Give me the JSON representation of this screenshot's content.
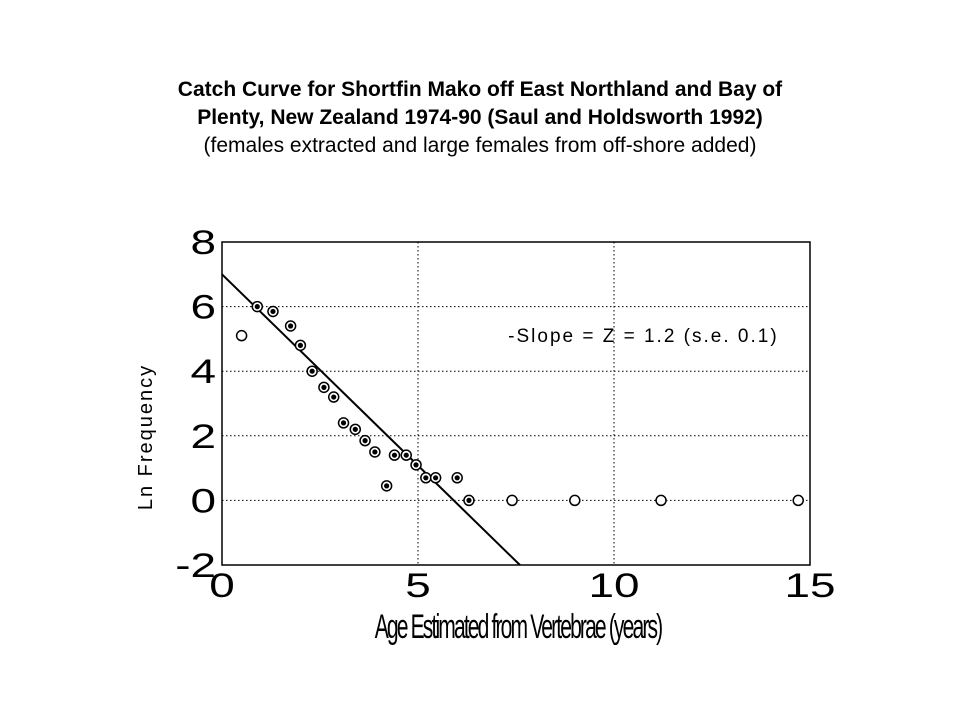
{
  "title_line1": "Catch Curve for Shortfin Mako off East Northland and Bay of",
  "title_line2": "Plenty, New Zealand 1974-90 (Saul and Holdsworth 1992)",
  "subtitle": "(females extracted and large females from off-shore added)",
  "chart_data": {
    "type": "scatter",
    "title": "Catch Curve for Shortfin Mako off East Northland and Bay of Plenty, New Zealand 1974-90 (Saul and Holdsworth 1992)",
    "subtitle": "(females extracted and large females from off-shore added)",
    "xlabel": "Age Estimated from Vertebrae (years)",
    "ylabel": "Ln Frequency",
    "xlim": [
      0,
      15
    ],
    "ylim": [
      -2,
      8
    ],
    "x_ticks": [
      "0",
      "5",
      "10",
      "15"
    ],
    "y_ticks": [
      "-2",
      "0",
      "2",
      "4",
      "6",
      "8"
    ],
    "grid": true,
    "annotation": "-Slope = Z = 1.2 (s.e. 0.1)",
    "series": [
      {
        "marker": "filled-circle",
        "points": [
          {
            "x": 0.9,
            "y": 6.0
          },
          {
            "x": 1.3,
            "y": 5.85
          },
          {
            "x": 1.75,
            "y": 5.4
          },
          {
            "x": 2.0,
            "y": 4.8
          },
          {
            "x": 2.3,
            "y": 4.0
          },
          {
            "x": 2.6,
            "y": 3.5
          },
          {
            "x": 2.85,
            "y": 3.2
          },
          {
            "x": 3.1,
            "y": 2.4
          },
          {
            "x": 3.4,
            "y": 2.2
          },
          {
            "x": 3.65,
            "y": 1.85
          },
          {
            "x": 3.9,
            "y": 1.5
          },
          {
            "x": 4.2,
            "y": 0.45
          },
          {
            "x": 4.4,
            "y": 1.4
          },
          {
            "x": 4.7,
            "y": 1.4
          },
          {
            "x": 4.95,
            "y": 1.1
          },
          {
            "x": 5.2,
            "y": 0.7
          },
          {
            "x": 5.45,
            "y": 0.7
          },
          {
            "x": 6.0,
            "y": 0.7
          },
          {
            "x": 6.3,
            "y": 0.0
          }
        ]
      },
      {
        "marker": "open-circle",
        "points": [
          {
            "x": 0.5,
            "y": 5.1
          },
          {
            "x": 7.4,
            "y": 0.0
          },
          {
            "x": 9.0,
            "y": 0.0
          },
          {
            "x": 11.2,
            "y": 0.0
          },
          {
            "x": 14.7,
            "y": 0.0
          }
        ]
      }
    ],
    "fit_line": {
      "points": [
        {
          "x": 0,
          "y": 7.0
        },
        {
          "x": 7.6,
          "y": -2.0
        }
      ]
    }
  }
}
